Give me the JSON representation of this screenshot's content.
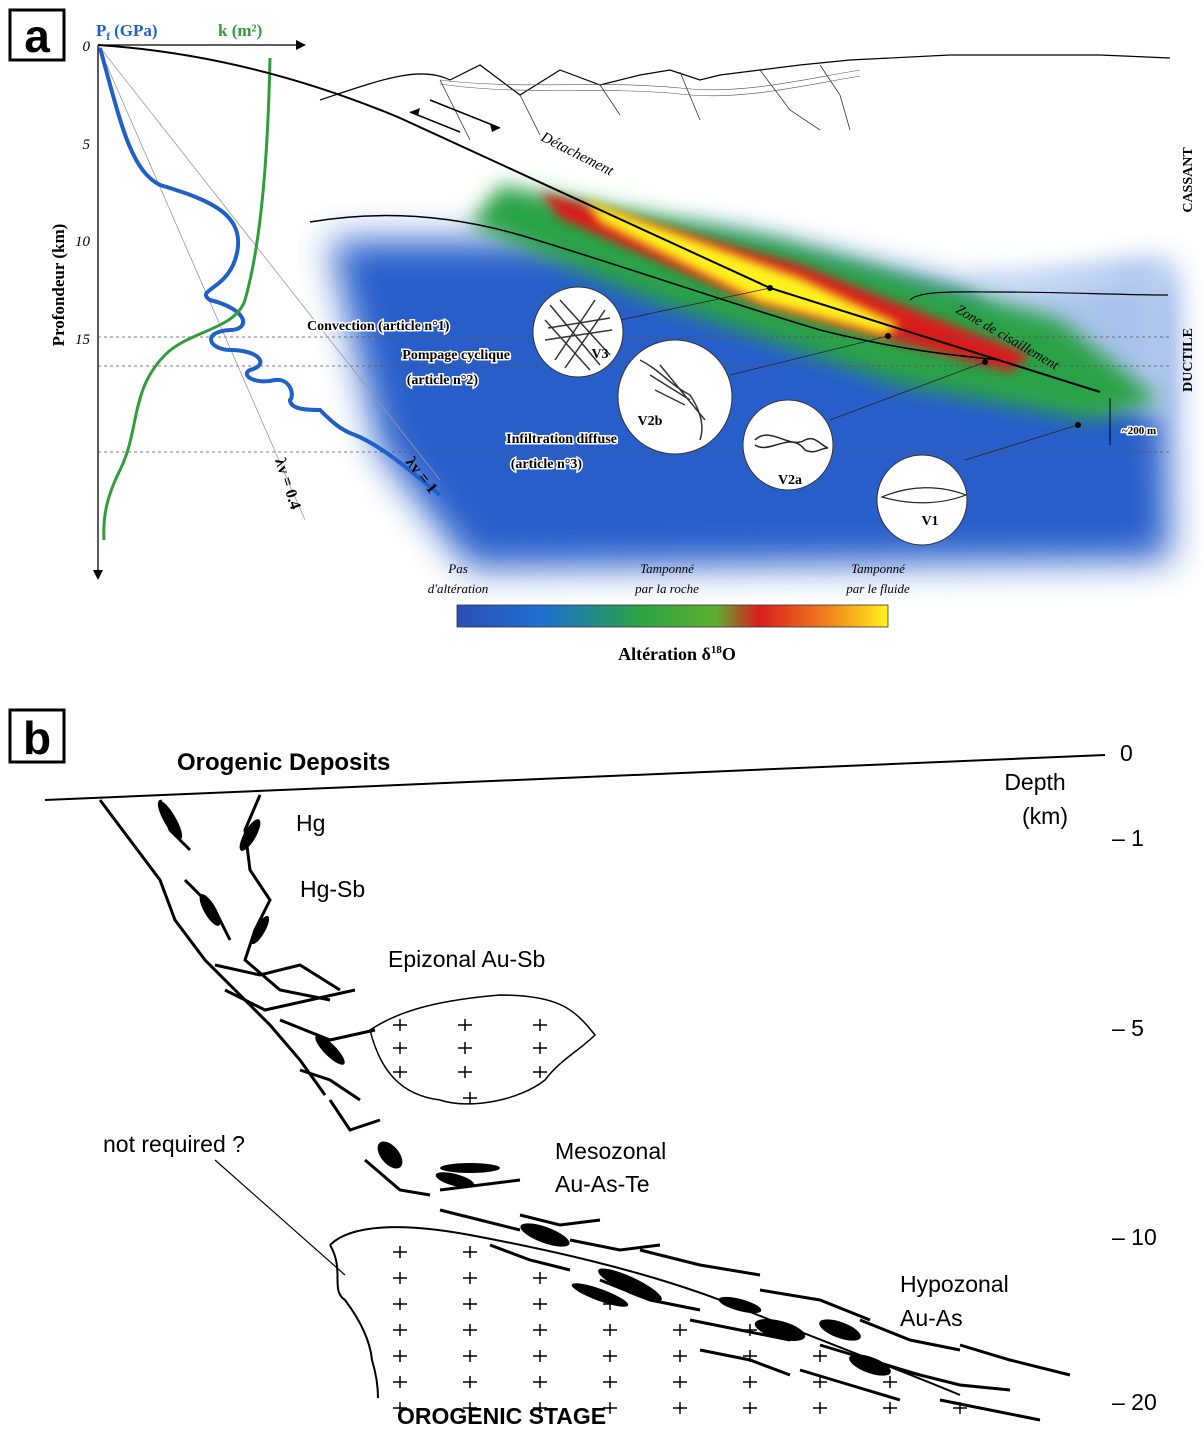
{
  "panel_a": {
    "label": "a",
    "pf_axis": {
      "symbol": "P",
      "sub": "f",
      "unit": "(GPa)"
    },
    "k_axis": "k (m²)",
    "depth_ticks": [
      "0",
      "5",
      "10",
      "15"
    ],
    "depth_label": "Profondeur (km)",
    "detachment": "Détachement",
    "shear_zone": "Zone de cisaillement",
    "cassant": "CASSANT",
    "ductile": "DUCTILE",
    "convection": "Convection (article n°1)",
    "pompage": [
      "Pompage cyclique",
      "(article n°2)"
    ],
    "infiltration": [
      "Infiltration diffuse",
      "(article n°3)"
    ],
    "veins": [
      "V3",
      "V2b",
      "V2a",
      "V1"
    ],
    "lambda_04": "λv = 0.4",
    "lambda_1": "λv = 1",
    "scale": "~200 m",
    "legend_left": [
      "Pas",
      "d'altération"
    ],
    "legend_mid": [
      "Tamponné",
      "par la roche"
    ],
    "legend_right": [
      "Tamponné",
      "par le fluide"
    ],
    "colorbar_title": {
      "text": "Altération δ",
      "sup": "18",
      "tail": "O"
    }
  },
  "panel_b": {
    "label": "b",
    "title": "Orogenic Deposits",
    "depth_label": [
      "Depth",
      "(km)"
    ],
    "depth_ticks": [
      "0",
      "– 1",
      "– 5",
      "– 10",
      "– 20"
    ],
    "hg": "Hg",
    "hg_sb": "Hg-Sb",
    "epizonal": "Epizonal Au-Sb",
    "mesozonal": [
      "Mesozonal",
      "Au-As-Te"
    ],
    "hypozonal": [
      "Hypozonal",
      "Au-As"
    ],
    "not_required": "not required ?",
    "stage": "OROGENIC STAGE"
  }
}
